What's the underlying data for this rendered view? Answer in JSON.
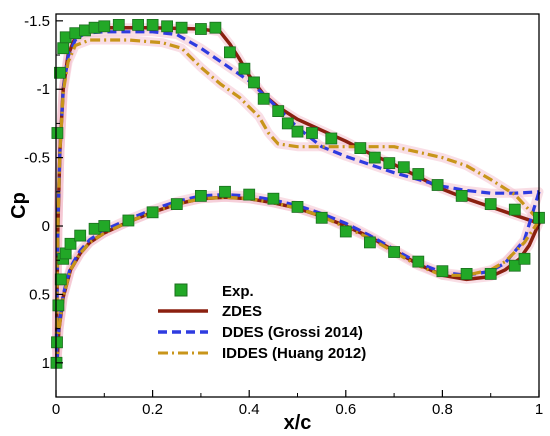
{
  "chart_data": {
    "type": "scatter",
    "title": "",
    "xlabel": "x/c",
    "ylabel": "Cp",
    "xlim": [
      0,
      1
    ],
    "ylim": [
      1.25,
      -1.55
    ],
    "y_inverted": true,
    "grid": false,
    "legend_position": "bottom-left",
    "x_ticks": [
      0,
      0.2,
      0.4,
      0.6,
      0.8,
      1
    ],
    "x_tick_labels": [
      "0",
      "0.2",
      "0.4",
      "0.6",
      "0.8",
      "1"
    ],
    "y_ticks": [
      -1.5,
      -1,
      -0.5,
      0,
      0.5,
      1
    ],
    "y_tick_labels": [
      "-1.5",
      "-1",
      "-0.5",
      "0",
      "0.5",
      "1"
    ],
    "colors": {
      "exp_fill": "#22a827",
      "exp_edge": "#1b6e1e",
      "zdes": "#8b2010",
      "ddes": "#2e3be0",
      "iddes": "#c8951a",
      "highlight": "#f4c2cf"
    },
    "series": [
      {
        "name": "Exp.",
        "kind": "markers",
        "points": [
          [
            0.001,
            1.0
          ],
          [
            0.002,
            0.85
          ],
          [
            0.005,
            0.58
          ],
          [
            0.01,
            0.39
          ],
          [
            0.015,
            0.24
          ],
          [
            0.02,
            0.2
          ],
          [
            0.03,
            0.13
          ],
          [
            0.05,
            0.07
          ],
          [
            0.08,
            0.02
          ],
          [
            0.1,
            0.0
          ],
          [
            0.15,
            -0.04
          ],
          [
            0.2,
            -0.1
          ],
          [
            0.25,
            -0.16
          ],
          [
            0.3,
            -0.22
          ],
          [
            0.35,
            -0.25
          ],
          [
            0.4,
            -0.23
          ],
          [
            0.45,
            -0.2
          ],
          [
            0.5,
            -0.14
          ],
          [
            0.55,
            -0.06
          ],
          [
            0.6,
            0.04
          ],
          [
            0.65,
            0.12
          ],
          [
            0.7,
            0.19
          ],
          [
            0.75,
            0.26
          ],
          [
            0.8,
            0.33
          ],
          [
            0.85,
            0.35
          ],
          [
            0.9,
            0.35
          ],
          [
            0.95,
            0.29
          ],
          [
            0.97,
            0.24
          ],
          [
            0.003,
            -0.68
          ],
          [
            0.008,
            -1.12
          ],
          [
            0.015,
            -1.3
          ],
          [
            0.02,
            -1.38
          ],
          [
            0.04,
            -1.41
          ],
          [
            0.06,
            -1.43
          ],
          [
            0.08,
            -1.45
          ],
          [
            0.1,
            -1.46
          ],
          [
            0.13,
            -1.47
          ],
          [
            0.17,
            -1.47
          ],
          [
            0.2,
            -1.47
          ],
          [
            0.23,
            -1.46
          ],
          [
            0.26,
            -1.45
          ],
          [
            0.3,
            -1.44
          ],
          [
            0.33,
            -1.45
          ],
          [
            0.36,
            -1.27
          ],
          [
            0.39,
            -1.15
          ],
          [
            0.41,
            -1.05
          ],
          [
            0.43,
            -0.93
          ],
          [
            0.46,
            -0.84
          ],
          [
            0.48,
            -0.75
          ],
          [
            0.5,
            -0.69
          ],
          [
            0.53,
            -0.68
          ],
          [
            0.57,
            -0.64
          ],
          [
            0.63,
            -0.57
          ],
          [
            0.66,
            -0.5
          ],
          [
            0.69,
            -0.46
          ],
          [
            0.72,
            -0.43
          ],
          [
            0.75,
            -0.38
          ],
          [
            0.79,
            -0.3
          ],
          [
            0.84,
            -0.22
          ],
          [
            0.9,
            -0.16
          ],
          [
            0.95,
            -0.12
          ],
          [
            1.0,
            -0.06
          ]
        ]
      },
      {
        "name": "ZDES",
        "kind": "line",
        "style": "solid",
        "points": [
          [
            1.0,
            -0.02
          ],
          [
            0.98,
            0.14
          ],
          [
            0.96,
            0.24
          ],
          [
            0.93,
            0.32
          ],
          [
            0.9,
            0.37
          ],
          [
            0.85,
            0.39
          ],
          [
            0.8,
            0.36
          ],
          [
            0.75,
            0.28
          ],
          [
            0.7,
            0.18
          ],
          [
            0.65,
            0.08
          ],
          [
            0.6,
            0.0
          ],
          [
            0.55,
            -0.07
          ],
          [
            0.5,
            -0.13
          ],
          [
            0.45,
            -0.17
          ],
          [
            0.4,
            -0.2
          ],
          [
            0.35,
            -0.21
          ],
          [
            0.3,
            -0.2
          ],
          [
            0.25,
            -0.16
          ],
          [
            0.2,
            -0.1
          ],
          [
            0.15,
            -0.03
          ],
          [
            0.1,
            0.05
          ],
          [
            0.07,
            0.12
          ],
          [
            0.05,
            0.2
          ],
          [
            0.03,
            0.32
          ],
          [
            0.015,
            0.52
          ],
          [
            0.006,
            0.76
          ],
          [
            0.002,
            1.0
          ],
          [
            0.001,
            0.85
          ],
          [
            0.002,
            0.5
          ],
          [
            0.004,
            0.0
          ],
          [
            0.008,
            -0.55
          ],
          [
            0.015,
            -1.0
          ],
          [
            0.025,
            -1.25
          ],
          [
            0.04,
            -1.38
          ],
          [
            0.06,
            -1.43
          ],
          [
            0.1,
            -1.45
          ],
          [
            0.2,
            -1.45
          ],
          [
            0.3,
            -1.44
          ],
          [
            0.34,
            -1.42
          ],
          [
            0.36,
            -1.33
          ],
          [
            0.38,
            -1.22
          ],
          [
            0.4,
            -1.1
          ],
          [
            0.43,
            -0.96
          ],
          [
            0.46,
            -0.87
          ],
          [
            0.5,
            -0.78
          ],
          [
            0.55,
            -0.7
          ],
          [
            0.6,
            -0.62
          ],
          [
            0.65,
            -0.53
          ],
          [
            0.7,
            -0.45
          ],
          [
            0.75,
            -0.36
          ],
          [
            0.8,
            -0.27
          ],
          [
            0.85,
            -0.2
          ],
          [
            0.9,
            -0.14
          ],
          [
            0.95,
            -0.08
          ],
          [
            1.0,
            -0.02
          ]
        ]
      },
      {
        "name": "DDES (Grossi 2014)",
        "kind": "line",
        "style": "dashed",
        "points": [
          [
            1.0,
            -0.25
          ],
          [
            0.97,
            0.1
          ],
          [
            0.93,
            0.27
          ],
          [
            0.9,
            0.33
          ],
          [
            0.85,
            0.36
          ],
          [
            0.8,
            0.34
          ],
          [
            0.75,
            0.27
          ],
          [
            0.7,
            0.17
          ],
          [
            0.65,
            0.07
          ],
          [
            0.6,
            -0.02
          ],
          [
            0.55,
            -0.09
          ],
          [
            0.5,
            -0.15
          ],
          [
            0.45,
            -0.19
          ],
          [
            0.4,
            -0.22
          ],
          [
            0.35,
            -0.23
          ],
          [
            0.3,
            -0.22
          ],
          [
            0.25,
            -0.18
          ],
          [
            0.2,
            -0.12
          ],
          [
            0.15,
            -0.05
          ],
          [
            0.1,
            0.03
          ],
          [
            0.07,
            0.1
          ],
          [
            0.05,
            0.18
          ],
          [
            0.03,
            0.3
          ],
          [
            0.015,
            0.5
          ],
          [
            0.006,
            0.74
          ],
          [
            0.002,
            0.98
          ],
          [
            0.001,
            0.85
          ],
          [
            0.002,
            0.5
          ],
          [
            0.004,
            0.0
          ],
          [
            0.008,
            -0.55
          ],
          [
            0.015,
            -1.0
          ],
          [
            0.025,
            -1.24
          ],
          [
            0.04,
            -1.36
          ],
          [
            0.06,
            -1.41
          ],
          [
            0.1,
            -1.42
          ],
          [
            0.2,
            -1.42
          ],
          [
            0.25,
            -1.4
          ],
          [
            0.3,
            -1.3
          ],
          [
            0.35,
            -1.18
          ],
          [
            0.4,
            -1.06
          ],
          [
            0.43,
            -0.96
          ],
          [
            0.46,
            -0.86
          ],
          [
            0.5,
            -0.72
          ],
          [
            0.55,
            -0.58
          ],
          [
            0.6,
            -0.51
          ],
          [
            0.65,
            -0.45
          ],
          [
            0.7,
            -0.39
          ],
          [
            0.75,
            -0.34
          ],
          [
            0.8,
            -0.29
          ],
          [
            0.85,
            -0.26
          ],
          [
            0.9,
            -0.24
          ],
          [
            0.95,
            -0.24
          ],
          [
            1.0,
            -0.25
          ]
        ]
      },
      {
        "name": "IDDES (Huang 2012)",
        "kind": "line",
        "style": "dashdot",
        "points": [
          [
            1.0,
            -0.04
          ],
          [
            0.97,
            0.12
          ],
          [
            0.93,
            0.26
          ],
          [
            0.9,
            0.32
          ],
          [
            0.85,
            0.36
          ],
          [
            0.8,
            0.36
          ],
          [
            0.75,
            0.29
          ],
          [
            0.7,
            0.19
          ],
          [
            0.65,
            0.09
          ],
          [
            0.6,
            0.01
          ],
          [
            0.55,
            -0.07
          ],
          [
            0.5,
            -0.13
          ],
          [
            0.45,
            -0.17
          ],
          [
            0.4,
            -0.2
          ],
          [
            0.35,
            -0.21
          ],
          [
            0.3,
            -0.2
          ],
          [
            0.25,
            -0.16
          ],
          [
            0.2,
            -0.1
          ],
          [
            0.15,
            -0.03
          ],
          [
            0.1,
            0.05
          ],
          [
            0.07,
            0.12
          ],
          [
            0.05,
            0.2
          ],
          [
            0.03,
            0.32
          ],
          [
            0.015,
            0.52
          ],
          [
            0.006,
            0.76
          ],
          [
            0.002,
            1.0
          ],
          [
            0.001,
            0.85
          ],
          [
            0.002,
            0.5
          ],
          [
            0.004,
            0.0
          ],
          [
            0.008,
            -0.55
          ],
          [
            0.015,
            -0.98
          ],
          [
            0.025,
            -1.2
          ],
          [
            0.04,
            -1.32
          ],
          [
            0.07,
            -1.36
          ],
          [
            0.15,
            -1.36
          ],
          [
            0.22,
            -1.34
          ],
          [
            0.26,
            -1.3
          ],
          [
            0.3,
            -1.16
          ],
          [
            0.34,
            -1.04
          ],
          [
            0.38,
            -0.94
          ],
          [
            0.42,
            -0.8
          ],
          [
            0.44,
            -0.68
          ],
          [
            0.46,
            -0.6
          ],
          [
            0.5,
            -0.58
          ],
          [
            0.6,
            -0.58
          ],
          [
            0.7,
            -0.58
          ],
          [
            0.8,
            -0.5
          ],
          [
            0.85,
            -0.44
          ],
          [
            0.9,
            -0.34
          ],
          [
            0.95,
            -0.23
          ],
          [
            1.0,
            -0.04
          ]
        ]
      }
    ]
  }
}
